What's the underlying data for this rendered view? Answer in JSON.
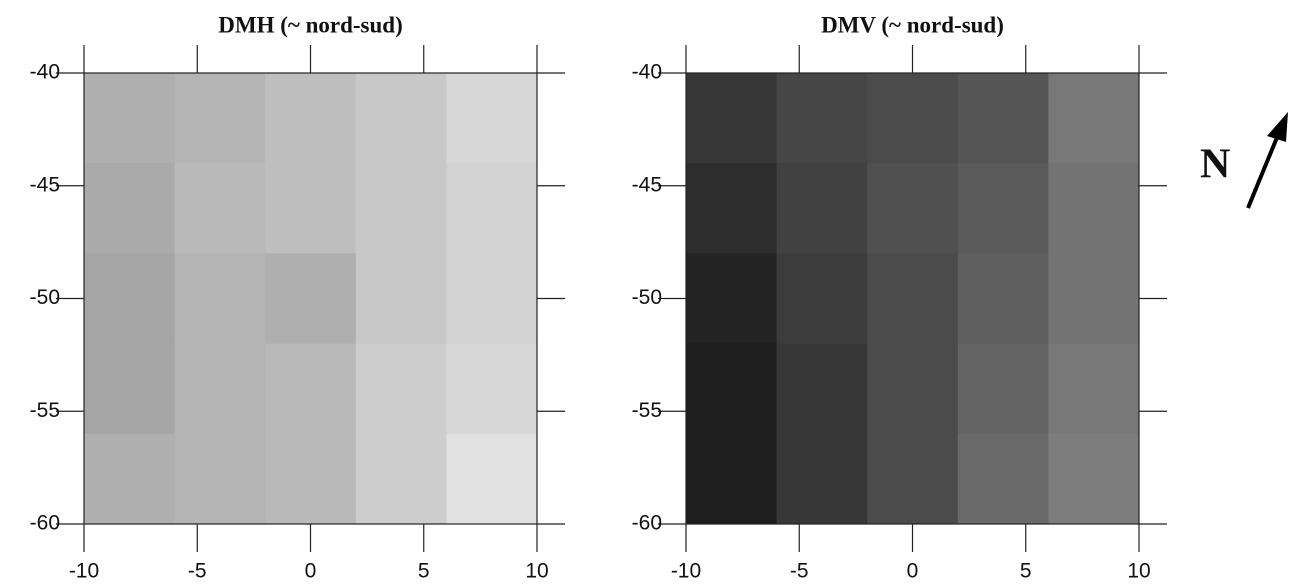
{
  "chart_data": [
    {
      "type": "heatmap",
      "title": "DMH (~ nord-sud)",
      "colormap": "gray",
      "xlim": [
        -10,
        10
      ],
      "ylim": [
        -60,
        -40
      ],
      "xticks": [
        -10,
        -5,
        0,
        5,
        10
      ],
      "yticks": [
        -40,
        -45,
        -50,
        -55,
        -60
      ],
      "values": [
        [
          175,
          180,
          190,
          200,
          215
        ],
        [
          170,
          185,
          190,
          200,
          210
        ],
        [
          165,
          180,
          175,
          200,
          210
        ],
        [
          165,
          180,
          185,
          205,
          215
        ],
        [
          175,
          180,
          185,
          205,
          225
        ]
      ]
    },
    {
      "type": "heatmap",
      "title": "DMV (~ nord-sud)",
      "colormap": "gray",
      "xlim": [
        -10,
        10
      ],
      "ylim": [
        -60,
        -40
      ],
      "xticks": [
        -10,
        -5,
        0,
        5,
        10
      ],
      "yticks": [
        -40,
        -45,
        -50,
        -55,
        -60
      ],
      "values": [
        [
          55,
          70,
          75,
          85,
          120
        ],
        [
          45,
          65,
          80,
          90,
          115
        ],
        [
          35,
          60,
          75,
          95,
          115
        ],
        [
          30,
          55,
          75,
          100,
          120
        ],
        [
          30,
          55,
          75,
          105,
          125
        ]
      ]
    }
  ],
  "annotations": [
    "N"
  ]
}
